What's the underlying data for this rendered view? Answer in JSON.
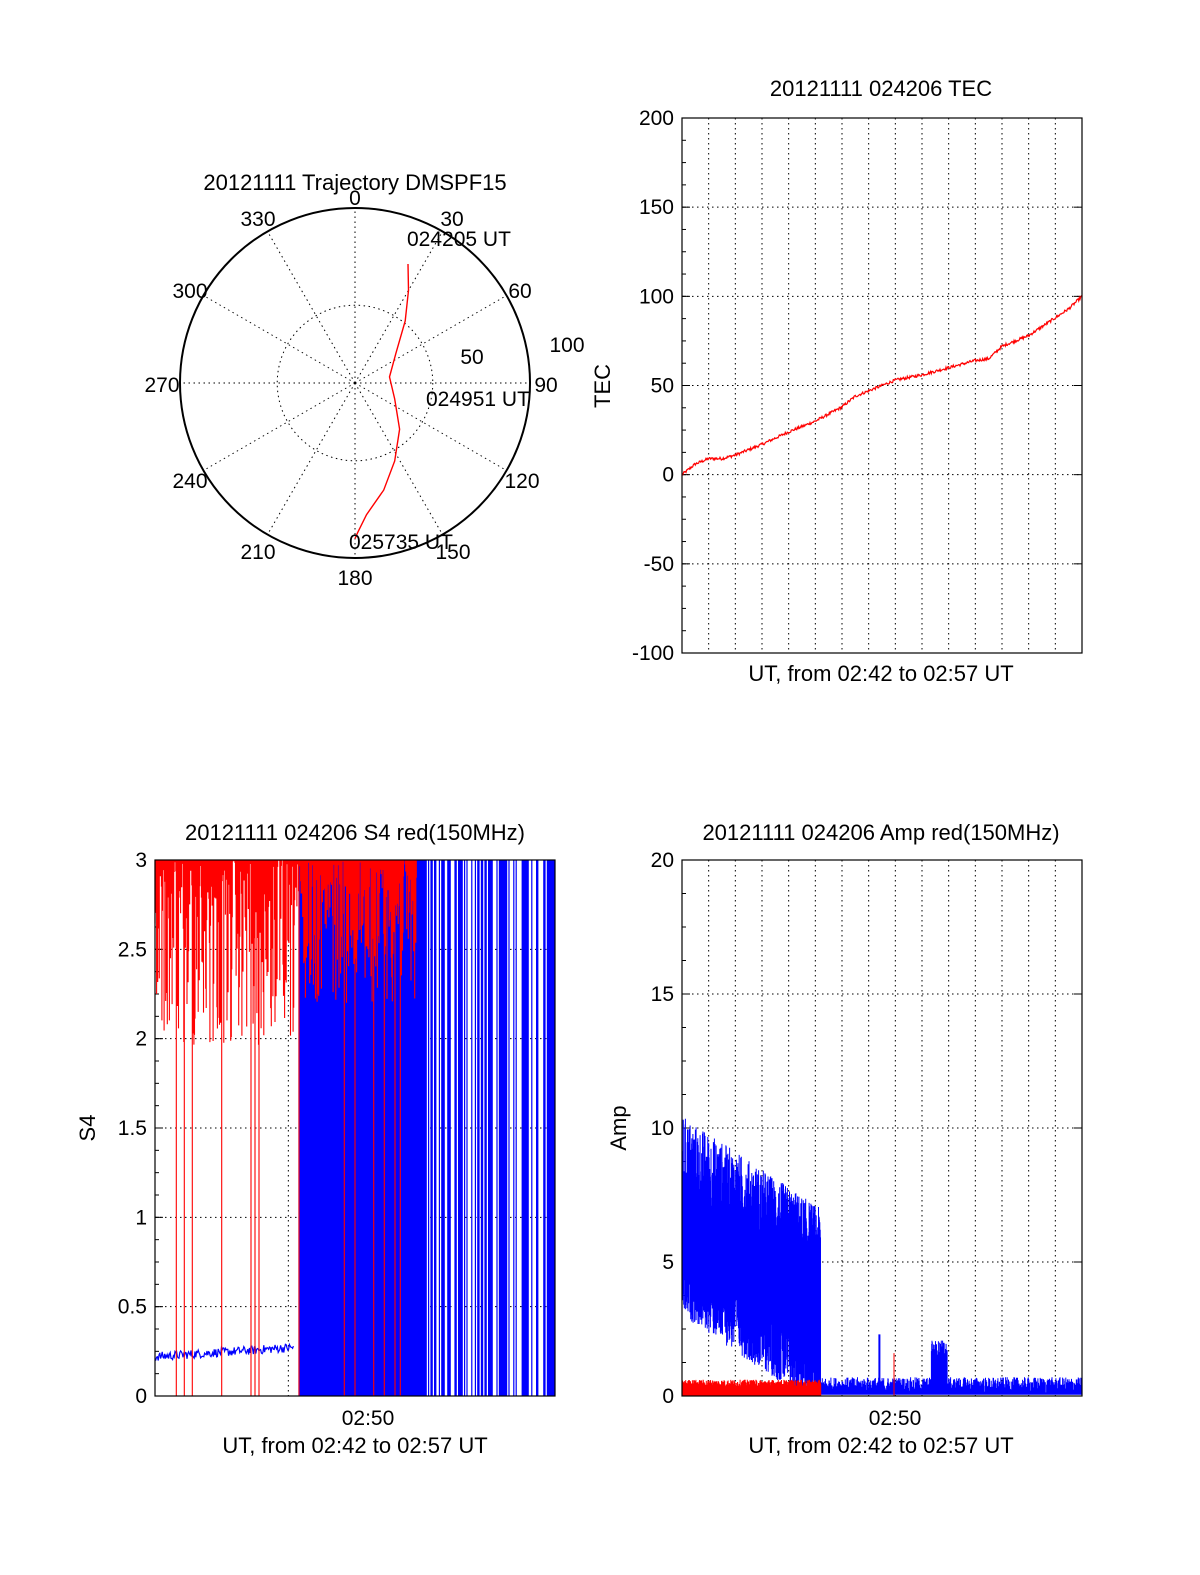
{
  "colors": {
    "red": "#ff0000",
    "blue": "#0000ff",
    "axis": "#000000"
  },
  "chart_data": [
    {
      "type": "scatter",
      "subtype": "polar",
      "title": "20121111 Trajectory DMSPF15",
      "angle_labels": [
        "0",
        "30",
        "60",
        "90",
        "120",
        "150",
        "180",
        "210",
        "240",
        "270",
        "300",
        "330"
      ],
      "radius_labels": [
        "50",
        "100"
      ],
      "grid": true,
      "series": [
        {
          "color": "#ff0000",
          "points_az_el": [
            [
              24,
              23
            ],
            [
              30,
              35
            ],
            [
              39,
              49
            ],
            [
              54,
              64
            ],
            [
              80,
              72
            ],
            [
              112,
              68
            ],
            [
              136,
              57
            ],
            [
              153,
              45
            ],
            [
              165,
              33
            ],
            [
              175,
              22
            ],
            [
              179,
              13
            ],
            [
              180,
              10
            ]
          ]
        }
      ],
      "annotations": [
        {
          "text": "024205 UT",
          "az": 30,
          "el": 35
        },
        {
          "text": "024951 UT",
          "az": 97,
          "el": 72
        },
        {
          "text": "025735 UT",
          "az": 180,
          "el": 10
        }
      ]
    },
    {
      "type": "line",
      "title": "20121111 024206 TEC",
      "xlabel": "UT, from 02:42 to 02:57 UT",
      "ylabel": "TEC",
      "ylim": [
        -100,
        200
      ],
      "yticks": [
        "200",
        "150",
        "100",
        "50",
        "0",
        "-50",
        "-100"
      ],
      "grid": true,
      "series": [
        {
          "color": "#ff0000",
          "x_minutes": [
            0,
            0.5,
            1,
            1.5,
            2,
            3,
            4,
            5,
            6,
            6.5,
            7,
            8,
            9,
            10,
            11,
            11.5,
            12,
            13,
            14,
            14.5,
            15
          ],
          "values": [
            0,
            6,
            9,
            9,
            11,
            17,
            24,
            30,
            38,
            44,
            47,
            53,
            56,
            60,
            64,
            65,
            72,
            78,
            88,
            93,
            100
          ]
        }
      ]
    },
    {
      "type": "line",
      "title": "20121111 024206 S4 red(150MHz)",
      "xlabel": "UT, from 02:42 to 02:57 UT",
      "ylabel": "S4",
      "ylim": [
        0,
        3
      ],
      "yticks": [
        "3",
        "2.5",
        "2",
        "1.5",
        "1",
        "0.5",
        "0"
      ],
      "xticks": [
        "02:50"
      ],
      "grid": true,
      "series": [
        {
          "color": "#0000ff",
          "description_segments": [
            {
              "from_min": 0,
              "to_min": 5.2,
              "level": 0.22
            },
            {
              "from_min": 9.3,
              "to_min": 9.7,
              "level": 0.55
            }
          ]
        },
        {
          "color": "#ff0000"
        }
      ]
    },
    {
      "type": "line",
      "title": "20121111 024206 Amp red(150MHz)",
      "xlabel": "UT, from 02:42 to 02:57 UT",
      "ylabel": "Amp",
      "ylim": [
        0,
        20
      ],
      "yticks": [
        "20",
        "15",
        "10",
        "5",
        "0"
      ],
      "xticks": [
        "02:50"
      ],
      "grid": true,
      "series": [
        {
          "color": "#0000ff",
          "envelope_max_start": 10.5,
          "envelope_max_end": 7.0,
          "envelope_end_min": 5.2,
          "tail_level": 0.5
        },
        {
          "color": "#ff0000",
          "level": 0.4,
          "to_min": 5.2
        }
      ]
    }
  ]
}
